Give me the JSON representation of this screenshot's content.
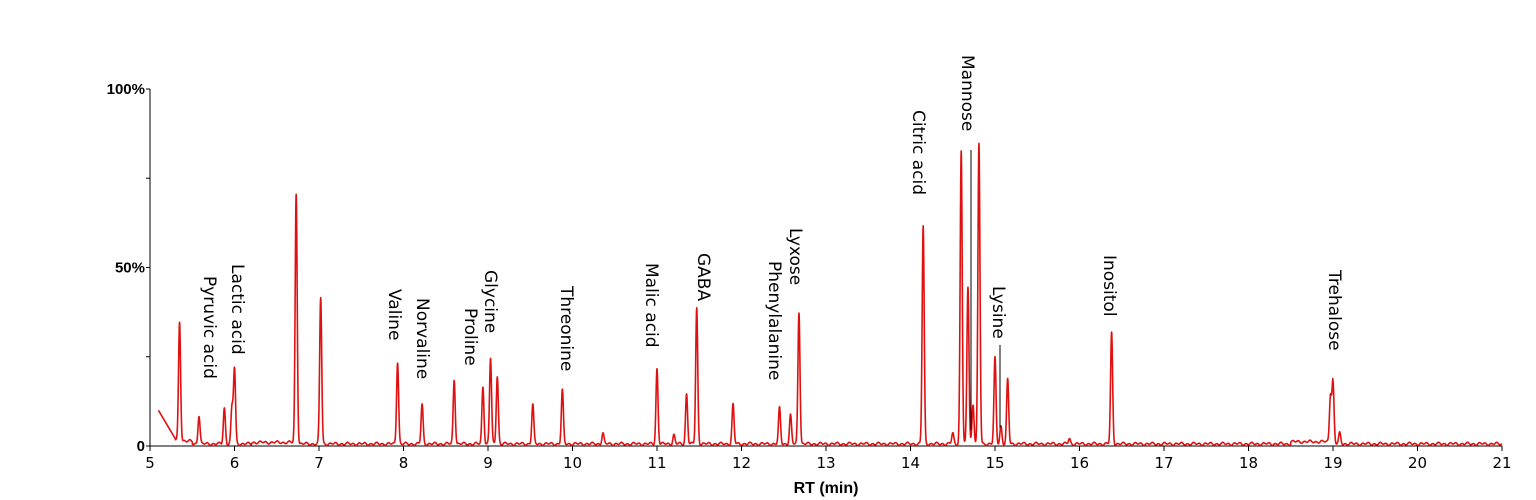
{
  "chart_data": {
    "type": "line",
    "xlabel": "RT  (min)",
    "ylabel": "",
    "xlim": [
      5,
      21
    ],
    "ylim": [
      0,
      100
    ],
    "x_ticks": [
      5,
      6,
      7,
      8,
      9,
      10,
      11,
      12,
      13,
      14,
      15,
      16,
      17,
      18,
      19,
      20,
      21
    ],
    "y_ticks": [
      {
        "value": 0,
        "label": "0"
      },
      {
        "value": 50,
        "label": "50%"
      },
      {
        "value": 100,
        "label": "100%"
      }
    ],
    "line_color": "#e01010",
    "peaks": [
      {
        "rt": 5.35,
        "height": 33
      },
      {
        "rt": 5.58,
        "height": 8
      },
      {
        "rt": 5.88,
        "height": 10
      },
      {
        "rt": 5.97,
        "height": 10
      },
      {
        "rt": 6.0,
        "height": 21
      },
      {
        "rt": 6.73,
        "height": 70
      },
      {
        "rt": 7.02,
        "height": 41
      },
      {
        "rt": 7.93,
        "height": 23
      },
      {
        "rt": 8.22,
        "height": 11
      },
      {
        "rt": 8.6,
        "height": 18
      },
      {
        "rt": 8.94,
        "height": 16
      },
      {
        "rt": 9.03,
        "height": 24
      },
      {
        "rt": 9.11,
        "height": 19
      },
      {
        "rt": 9.53,
        "height": 11
      },
      {
        "rt": 9.88,
        "height": 15
      },
      {
        "rt": 10.36,
        "height": 3
      },
      {
        "rt": 11.0,
        "height": 21
      },
      {
        "rt": 11.2,
        "height": 2.5
      },
      {
        "rt": 11.35,
        "height": 14
      },
      {
        "rt": 11.47,
        "height": 38
      },
      {
        "rt": 11.9,
        "height": 11
      },
      {
        "rt": 12.45,
        "height": 10
      },
      {
        "rt": 12.58,
        "height": 8
      },
      {
        "rt": 12.68,
        "height": 37
      },
      {
        "rt": 14.15,
        "height": 61
      },
      {
        "rt": 14.5,
        "height": 3
      },
      {
        "rt": 14.6,
        "height": 82
      },
      {
        "rt": 14.68,
        "height": 44
      },
      {
        "rt": 14.74,
        "height": 11
      },
      {
        "rt": 14.81,
        "height": 84
      },
      {
        "rt": 15.0,
        "height": 24
      },
      {
        "rt": 15.07,
        "height": 5
      },
      {
        "rt": 15.15,
        "height": 18
      },
      {
        "rt": 15.88,
        "height": 1.5
      },
      {
        "rt": 16.38,
        "height": 31
      },
      {
        "rt": 18.97,
        "height": 13
      },
      {
        "rt": 19.0,
        "height": 17
      },
      {
        "rt": 19.08,
        "height": 3
      }
    ],
    "annotations": [
      {
        "text": "Pyruvic acid",
        "rt": 5.58
      },
      {
        "text": "Lactic acid",
        "rt": 6.0
      },
      {
        "text": "Valine",
        "rt": 7.93
      },
      {
        "text": "Norvaline",
        "rt": 8.22
      },
      {
        "text": "Proline",
        "rt": 8.94
      },
      {
        "text": "Glycine",
        "rt": 9.03
      },
      {
        "text": "Threonine",
        "rt": 9.88
      },
      {
        "text": "Malic acid",
        "rt": 11.0
      },
      {
        "text": "GABA",
        "rt": 11.47
      },
      {
        "text": "Phenylalanine",
        "rt": 12.45
      },
      {
        "text": "Lyxose",
        "rt": 12.68
      },
      {
        "text": "Citric acid",
        "rt": 14.15
      },
      {
        "text": "Mannose",
        "rt": 14.68
      },
      {
        "text": "Lysine",
        "rt": 15.07
      },
      {
        "text": "Inositol",
        "rt": 16.38
      },
      {
        "text": "Trehalose",
        "rt": 19.0
      }
    ]
  }
}
